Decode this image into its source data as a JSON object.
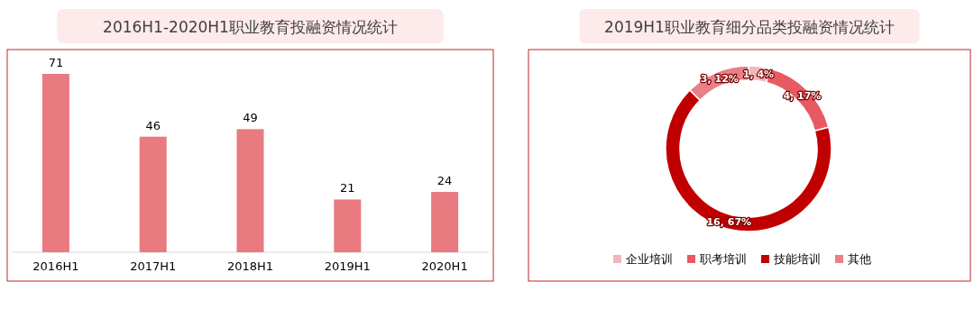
{
  "chart_data": [
    {
      "type": "bar",
      "title": "2016H1-2020H1职业教育投融资情况统计",
      "categories": [
        "2016H1",
        "2017H1",
        "2018H1",
        "2019H1",
        "2020H1"
      ],
      "values": [
        71,
        46,
        49,
        21,
        24
      ],
      "color": "#e87a80",
      "data_labels": true
    },
    {
      "type": "donut",
      "title": "2019H1职业教育细分品类投融资情况统计",
      "categories": [
        "企业培训",
        "职考培训",
        "技能培训",
        "其他"
      ],
      "values": [
        1,
        4,
        16,
        3
      ],
      "colors": [
        "#f0b8bc",
        "#e85a63",
        "#c00000",
        "#e88088"
      ],
      "value_labels": [
        "1, 4%",
        "4, 17%",
        "16, 67%",
        "3, 12%"
      ],
      "legend": "bottom"
    }
  ]
}
